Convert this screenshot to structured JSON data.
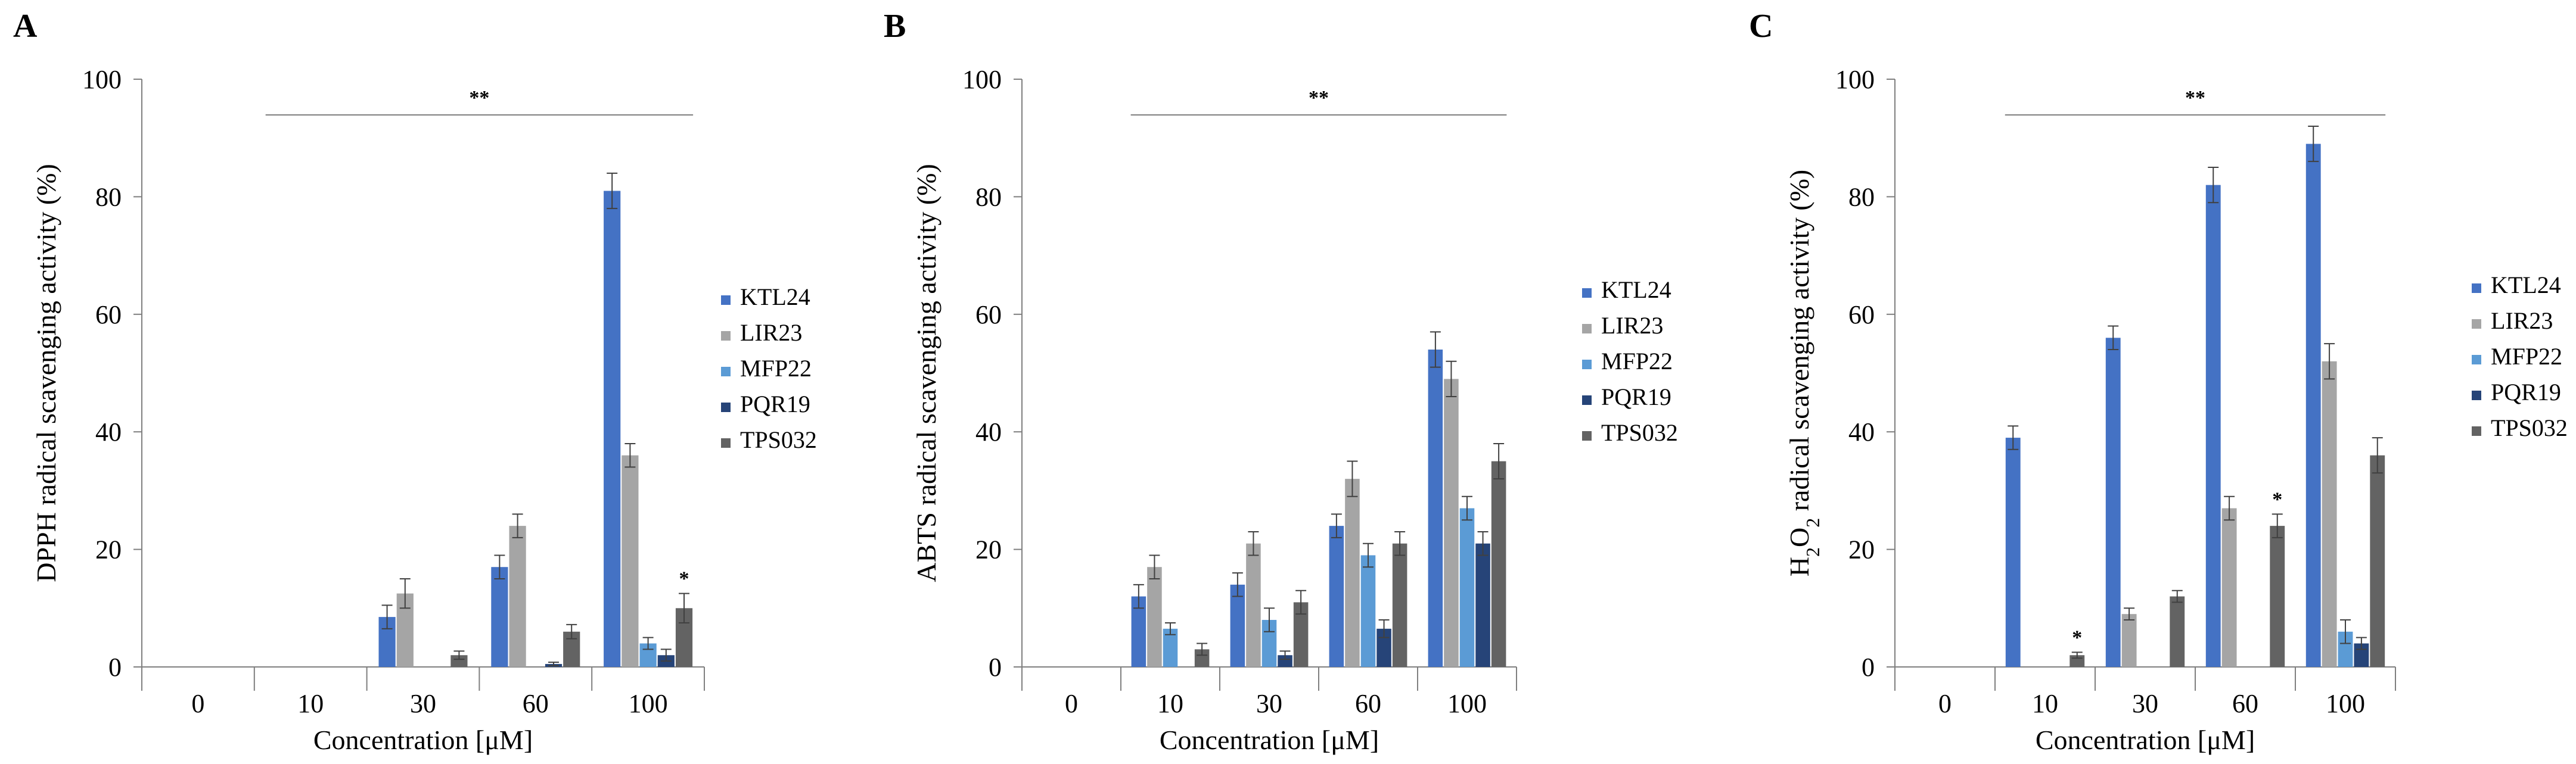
{
  "chart_data": [
    {
      "panel": "A",
      "type": "bar",
      "categories": [
        "0",
        "10",
        "30",
        "60",
        "100"
      ],
      "xlabel": "Concentration [μM]",
      "ylabel": "DPPH radical scavenging activity (%)",
      "ylim": [
        0,
        100
      ],
      "yticks": [
        "0",
        "20",
        "40",
        "60",
        "80",
        "100"
      ],
      "legend_position": "right",
      "series": [
        {
          "name": "KTL24",
          "color": "#4472C4",
          "values": [
            0,
            0,
            8.5,
            17,
            81
          ],
          "errors": [
            0,
            0,
            2,
            2,
            3
          ]
        },
        {
          "name": "LIR23",
          "color": "#A5A5A5",
          "values": [
            0,
            0,
            12.5,
            24,
            36
          ],
          "errors": [
            0,
            0,
            2.5,
            2,
            2
          ]
        },
        {
          "name": "MFP22",
          "color": "#5B9BD5",
          "values": [
            0,
            0,
            0,
            0,
            4
          ],
          "errors": [
            0,
            0,
            0,
            0,
            1
          ]
        },
        {
          "name": "PQR19",
          "color": "#264478",
          "values": [
            0,
            0,
            0,
            0.5,
            2
          ],
          "errors": [
            0,
            0,
            0,
            0.3,
            1
          ]
        },
        {
          "name": "TPS032",
          "color": "#636363",
          "values": [
            0,
            0,
            2,
            6,
            10
          ],
          "errors": [
            0,
            0,
            0.7,
            1.2,
            2.5
          ]
        }
      ],
      "significance": {
        "bracket_label": "**",
        "from_category": "10",
        "to_category": "100",
        "stars": [
          {
            "category": "100",
            "series": "TPS032",
            "label": "*"
          }
        ]
      }
    },
    {
      "panel": "B",
      "type": "bar",
      "categories": [
        "0",
        "10",
        "30",
        "60",
        "100"
      ],
      "xlabel": "Concentration [μM]",
      "ylabel": "ABTS radical scavenging activity (%)",
      "ylim": [
        0,
        100
      ],
      "yticks": [
        "0",
        "20",
        "40",
        "60",
        "80",
        "100"
      ],
      "legend_position": "right",
      "series": [
        {
          "name": "KTL24",
          "color": "#4472C4",
          "values": [
            0,
            12,
            14,
            24,
            54
          ],
          "errors": [
            0,
            2,
            2,
            2,
            3
          ]
        },
        {
          "name": "LIR23",
          "color": "#A5A5A5",
          "values": [
            0,
            17,
            21,
            32,
            49
          ],
          "errors": [
            0,
            2,
            2,
            3,
            3
          ]
        },
        {
          "name": "MFP22",
          "color": "#5B9BD5",
          "values": [
            0,
            6.5,
            8,
            19,
            27
          ],
          "errors": [
            0,
            1,
            2,
            2,
            2
          ]
        },
        {
          "name": "PQR19",
          "color": "#264478",
          "values": [
            0,
            0,
            2,
            6.5,
            21
          ],
          "errors": [
            0,
            0,
            0.7,
            1.5,
            2
          ]
        },
        {
          "name": "TPS032",
          "color": "#636363",
          "values": [
            0,
            3,
            11,
            21,
            35
          ],
          "errors": [
            0,
            1,
            2,
            2,
            3
          ]
        }
      ],
      "significance": {
        "bracket_label": "**",
        "from_category": "10",
        "to_category": "100",
        "stars": []
      }
    },
    {
      "panel": "C",
      "type": "bar",
      "categories": [
        "0",
        "10",
        "30",
        "60",
        "100"
      ],
      "xlabel": "Concentration [μM]",
      "ylabel": "H2O2 radical scavenging activity (%)",
      "ylabel_parts": [
        "H",
        "2",
        "O",
        "2",
        " radical scavenging activity (%)"
      ],
      "ylim": [
        0,
        100
      ],
      "yticks": [
        "0",
        "20",
        "40",
        "60",
        "80",
        "100"
      ],
      "legend_position": "right",
      "series": [
        {
          "name": "KTL24",
          "color": "#4472C4",
          "values": [
            0,
            39,
            56,
            82,
            89
          ],
          "errors": [
            0,
            2,
            2,
            3,
            3
          ]
        },
        {
          "name": "LIR23",
          "color": "#A5A5A5",
          "values": [
            0,
            0,
            9,
            27,
            52
          ],
          "errors": [
            0,
            0,
            1,
            2,
            3
          ]
        },
        {
          "name": "MFP22",
          "color": "#5B9BD5",
          "values": [
            0,
            0,
            0,
            0,
            6
          ],
          "errors": [
            0,
            0,
            0,
            0,
            2
          ]
        },
        {
          "name": "PQR19",
          "color": "#264478",
          "values": [
            0,
            0,
            0,
            0,
            4
          ],
          "errors": [
            0,
            0,
            0,
            0,
            1
          ]
        },
        {
          "name": "TPS032",
          "color": "#636363",
          "values": [
            0,
            2,
            12,
            24,
            36
          ],
          "errors": [
            0,
            0.5,
            1,
            2,
            3
          ]
        }
      ],
      "significance": {
        "bracket_label": "**",
        "from_category": "10",
        "to_category": "100",
        "stars": [
          {
            "category": "10",
            "series": "TPS032",
            "label": "*"
          },
          {
            "category": "60",
            "series": "TPS032",
            "label": "*"
          }
        ]
      }
    }
  ]
}
